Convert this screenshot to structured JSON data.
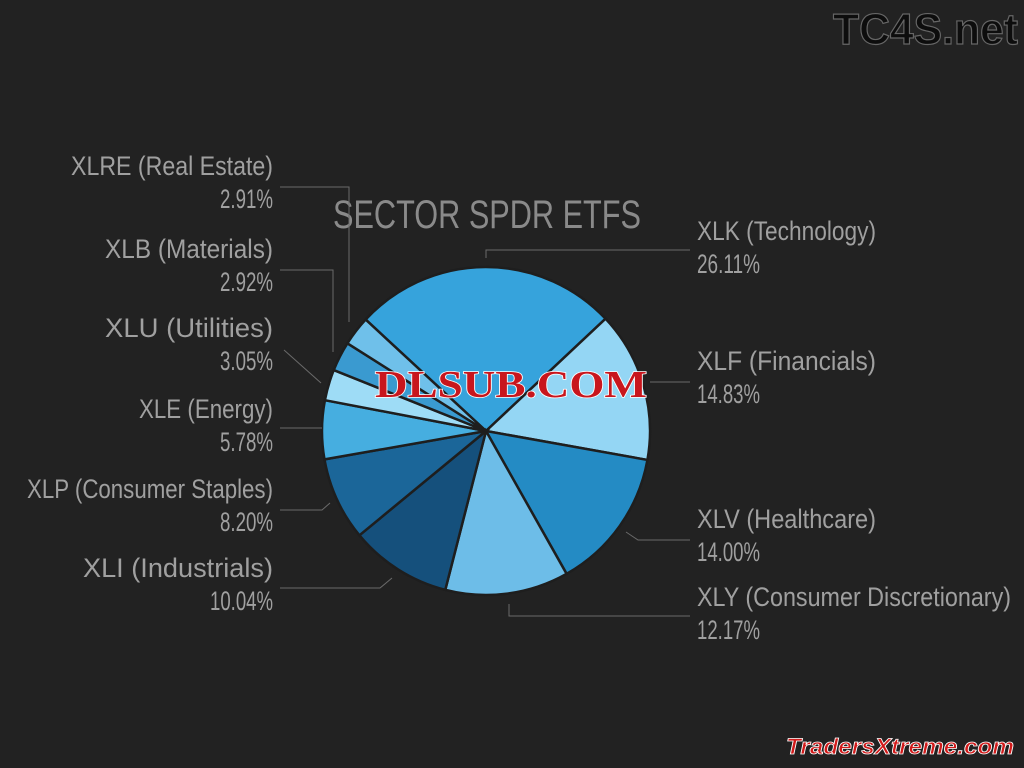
{
  "chart_data": {
    "type": "pie",
    "title": "SECTOR SPDR ETFS",
    "slices": [
      {
        "label": "XLK (Technology)",
        "value_label": "26.11%",
        "value": 26.11,
        "color": "#36a3dc"
      },
      {
        "label": "XLF (Financials)",
        "value_label": "14.83%",
        "value": 14.83,
        "color": "#94d6f4"
      },
      {
        "label": "XLV (Healthcare)",
        "value_label": "14.00%",
        "value": 14.0,
        "color": "#248bc4"
      },
      {
        "label": "XLY (Consumer Discretionary)",
        "value_label": "12.17%",
        "value": 12.17,
        "color": "#6dbde8"
      },
      {
        "label": "XLI (Industrials)",
        "value_label": "10.04%",
        "value": 10.04,
        "color": "#15507c"
      },
      {
        "label": "XLP (Consumer Staples)",
        "value_label": "8.20%",
        "value": 8.2,
        "color": "#1b6699"
      },
      {
        "label": "XLE (Energy)",
        "value_label": "5.78%",
        "value": 5.78,
        "color": "#46aee0"
      },
      {
        "label": "XLU (Utilities)",
        "value_label": "3.05%",
        "value": 3.05,
        "color": "#9edcf6"
      },
      {
        "label": "XLB (Materials)",
        "value_label": "2.92%",
        "value": 2.92,
        "color": "#3a9ad0"
      },
      {
        "label": "XLRE (Real Estate)",
        "value_label": "2.91%",
        "value": 2.91,
        "color": "#6fc0ea"
      }
    ],
    "legend": "none",
    "labels": "outside with leader lines"
  },
  "watermarks": {
    "top_right": "TC4S.net",
    "center": "DLSUB.COM",
    "bottom_right": "TradersXtreme.com"
  }
}
